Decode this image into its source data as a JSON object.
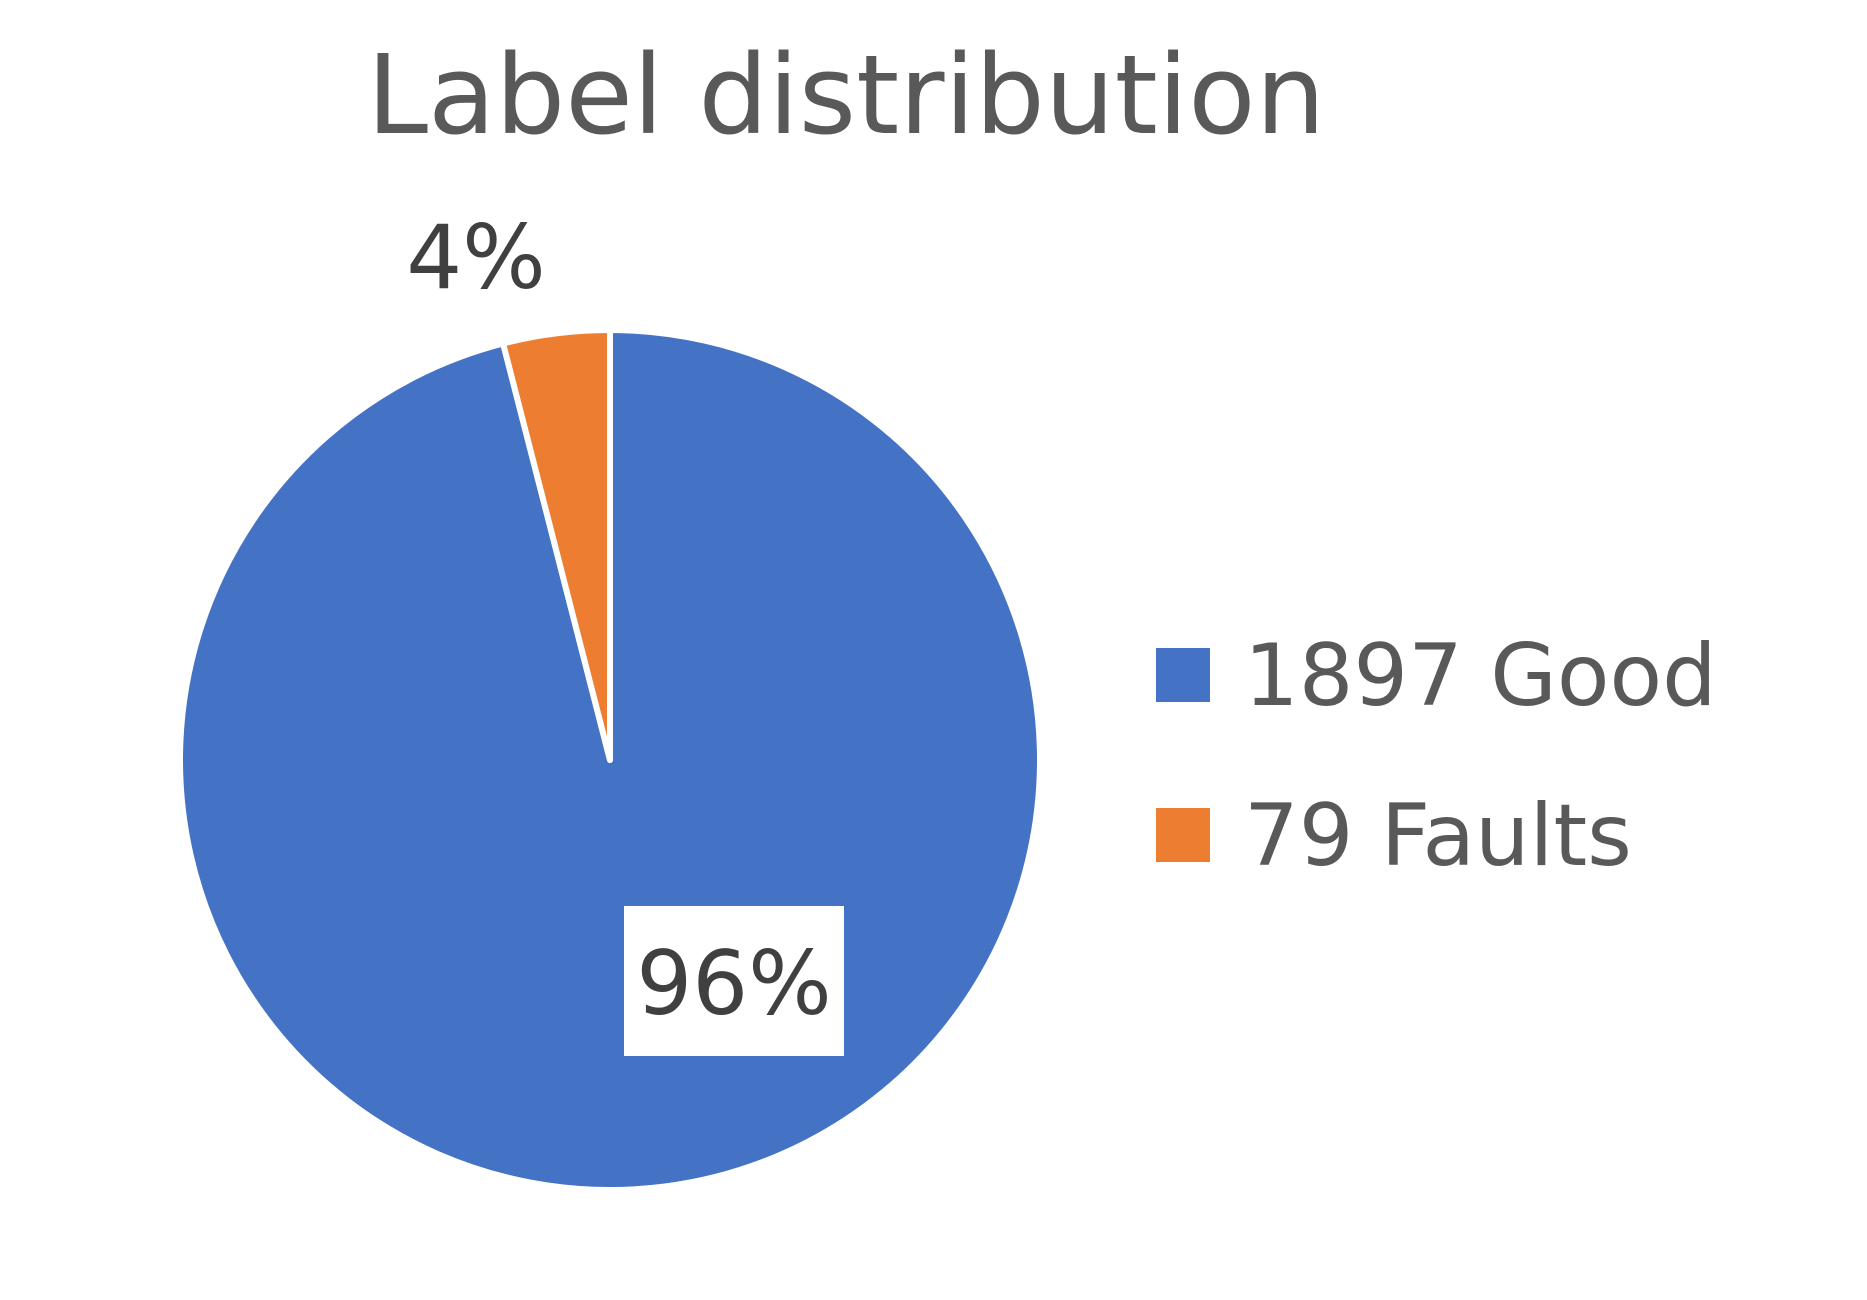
{
  "chart_data": {
    "type": "pie",
    "title": "Label distribution",
    "slices": [
      {
        "label": "1897 Good",
        "value": 1897,
        "percent_label": "96%",
        "color": "#4472C4"
      },
      {
        "label": "79 Faults",
        "value": 79,
        "percent_label": "4%",
        "color": "#ED7D31"
      }
    ],
    "start_angle_deg": 0,
    "direction": "clockwise",
    "legend_position": "right",
    "slice_border_color": "#ffffff"
  }
}
